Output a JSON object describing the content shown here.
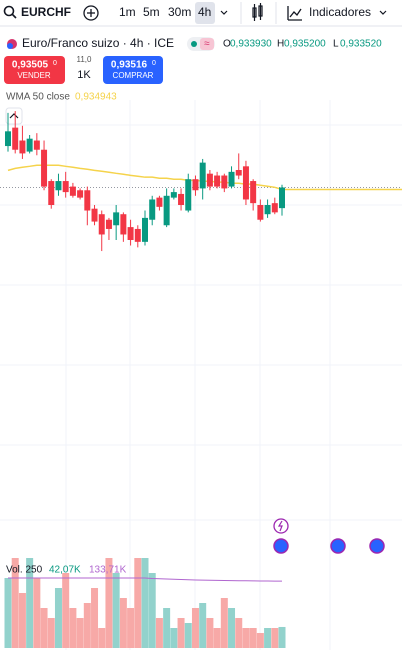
{
  "toolbar": {
    "symbol": "EURCHF",
    "timeframes": [
      "1m",
      "5m",
      "30m",
      "4h"
    ],
    "indicators": "Indicadores"
  },
  "trade": {
    "sell": {
      "price": "0,93505",
      "sup": "0",
      "label": "VENDER"
    },
    "spread": {
      "top": "11,0",
      "bottom": "1K"
    },
    "buy": {
      "price": "0,93516",
      "sup": "0",
      "label": "COMPRAR"
    }
  },
  "chart_data": {
    "type": "candlestick",
    "title": "Euro/Franco suizo · 4h · ICE",
    "legend": [
      {
        "key": "O",
        "text": "0,933930"
      },
      {
        "key": "H",
        "text": "0,935200"
      },
      {
        "key": "L",
        "text": "0,933520"
      }
    ],
    "open": [
      0.9373,
      0.9383,
      0.9376,
      0.937,
      0.9376,
      0.9371,
      0.9354,
      0.9349,
      0.9354,
      0.9351,
      0.9349,
      0.9349,
      0.9339,
      0.9336,
      0.9333,
      0.933,
      0.9336,
      0.9329,
      0.9328,
      0.9321,
      0.9333,
      0.9345,
      0.933,
      0.9345,
      0.9347,
      0.9338,
      0.9355,
      0.935,
      0.9358,
      0.9357,
      0.9357,
      0.9351,
      0.936,
      0.9362,
      0.9354,
      0.9341,
      0.9336,
      0.9342,
      0.93393
    ],
    "high": [
      0.9391,
      0.9392,
      0.9384,
      0.9379,
      0.938,
      0.9376,
      0.9355,
      0.9358,
      0.9359,
      0.9353,
      0.935,
      0.9351,
      0.9341,
      0.9338,
      0.9334,
      0.9341,
      0.9337,
      0.9333,
      0.933,
      0.9338,
      0.9346,
      0.9346,
      0.935,
      0.935,
      0.935,
      0.9358,
      0.9357,
      0.9366,
      0.936,
      0.9359,
      0.9358,
      0.9362,
      0.9369,
      0.9365,
      0.9355,
      0.9344,
      0.9344,
      0.9345,
      0.9352
    ],
    "low": [
      0.937,
      0.9369,
      0.9366,
      0.9369,
      0.9368,
      0.9349,
      0.9339,
      0.9346,
      0.9345,
      0.9345,
      0.9344,
      0.933,
      0.933,
      0.9316,
      0.9322,
      0.9322,
      0.9321,
      0.9319,
      0.9318,
      0.9319,
      0.933,
      0.9338,
      0.9329,
      0.9344,
      0.9338,
      0.9337,
      0.9346,
      0.9344,
      0.9349,
      0.935,
      0.9348,
      0.935,
      0.9355,
      0.9341,
      0.9338,
      0.9332,
      0.9334,
      0.9336,
      0.93352
    ],
    "close": [
      0.9381,
      0.9371,
      0.9369,
      0.9377,
      0.9371,
      0.9351,
      0.9341,
      0.9354,
      0.9348,
      0.9346,
      0.9345,
      0.9338,
      0.9332,
      0.9325,
      0.9328,
      0.9337,
      0.9325,
      0.9322,
      0.9321,
      0.9334,
      0.9344,
      0.934,
      0.9346,
      0.9348,
      0.9341,
      0.9355,
      0.9349,
      0.9364,
      0.9351,
      0.9351,
      0.935,
      0.9359,
      0.9357,
      0.9344,
      0.9342,
      0.9333,
      0.9341,
      0.9337,
      0.93505
    ],
    "ylim": [
      0.917,
      0.9398
    ],
    "up_color": "#089981",
    "down_color": "#f23645",
    "wma": {
      "name": "WMA 50 close",
      "color": "#f5d34b",
      "value_label": "0,934943",
      "values": [
        0.93598,
        0.93609,
        0.93615,
        0.9362,
        0.93626,
        0.93626,
        0.93626,
        0.93626,
        0.9362,
        0.93615,
        0.93609,
        0.93604,
        0.93598,
        0.93593,
        0.93588,
        0.93582,
        0.93577,
        0.93571,
        0.93566,
        0.93561,
        0.93561,
        0.93555,
        0.93555,
        0.9355,
        0.9355,
        0.93544,
        0.93544,
        0.93539,
        0.93539,
        0.93534,
        0.93534,
        0.93528,
        0.93528,
        0.93523,
        0.93523,
        0.93517,
        0.93512,
        0.93506,
        0.934943
      ]
    },
    "volume": {
      "name": "Vol. 250",
      "value_label": "42,07K",
      "ylim": [
        0,
        190000
      ],
      "up_color": "#92d2cc",
      "down_color": "#f7a9a7",
      "values": [
        140000,
        180000,
        110000,
        180000,
        140000,
        80000,
        60000,
        120000,
        150000,
        80000,
        60000,
        90000,
        120000,
        40000,
        180000,
        150000,
        100000,
        80000,
        180000,
        180000,
        150000,
        60000,
        80000,
        40000,
        60000,
        50000,
        80000,
        90000,
        60000,
        40000,
        100000,
        80000,
        60000,
        40000,
        40000,
        30000,
        40000,
        40000,
        42070
      ],
      "ma": {
        "color": "#b066cf",
        "value_label": "133,71K",
        "values": [
          140000,
          140000,
          140000,
          140000,
          140000,
          140000,
          140000,
          140000,
          140000,
          140000,
          140000,
          140000,
          140000,
          140000,
          140000,
          140000,
          140000,
          140000,
          140000,
          140000,
          139000,
          138500,
          138000,
          137500,
          137000,
          136500,
          136000,
          135800,
          135500,
          135200,
          135000,
          134800,
          134600,
          134400,
          134200,
          134000,
          133900,
          133800,
          133710
        ]
      }
    }
  }
}
